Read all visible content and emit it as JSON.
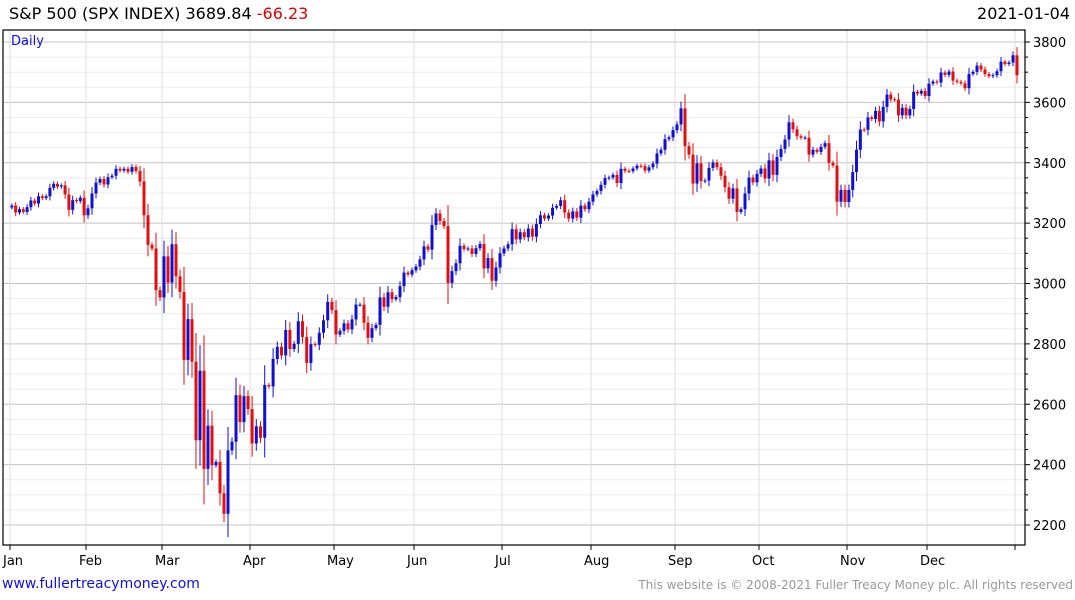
{
  "header": {
    "title": "S&P 500 (SPX INDEX) 3689.84",
    "change": "-66.23",
    "date": "2021-01-04"
  },
  "footer": {
    "link": "www.fullertreacymoney.com",
    "copyright": "This website is © 2008-2021 Fuller Treacy Money plc. All rights reserved"
  },
  "chart_data": {
    "type": "candlestick",
    "title": "S&P 500 (SPX INDEX)",
    "period_label": "Daily",
    "last": 3689.84,
    "change": -66.23,
    "ylim": [
      2170,
      3830
    ],
    "yticks": [
      2200,
      2400,
      2600,
      2800,
      3000,
      3200,
      3400,
      3600,
      3800
    ],
    "colors": {
      "up": "#1010d0",
      "down": "#e01010"
    },
    "months": [
      {
        "label": "Jan",
        "closes": [
          3258,
          3235,
          3246,
          3237,
          3253,
          3275,
          3265,
          3289,
          3283,
          3289,
          3317,
          3330,
          3321,
          3325,
          3295,
          3244,
          3276,
          3273,
          3284,
          3226
        ]
      },
      {
        "label": "Feb",
        "closes": [
          3249,
          3298,
          3334,
          3346,
          3328,
          3352,
          3357,
          3380,
          3374,
          3380,
          3370,
          3386,
          3373,
          3338,
          3226,
          3128,
          3116,
          2978,
          2954
        ]
      },
      {
        "label": "Mar",
        "closes": [
          3090,
          3003,
          3130,
          3024,
          2972,
          2747,
          2882,
          2741,
          2481,
          2711,
          2386,
          2529,
          2398,
          2409,
          2305,
          2237,
          2447,
          2476,
          2630,
          2541,
          2627,
          2584
        ]
      },
      {
        "label": "Apr",
        "closes": [
          2470,
          2527,
          2489,
          2664,
          2659,
          2750,
          2790,
          2762,
          2846,
          2783,
          2800,
          2875,
          2823,
          2737,
          2799,
          2797,
          2837,
          2878,
          2939,
          2912
        ]
      },
      {
        "label": "May",
        "closes": [
          2831,
          2843,
          2868,
          2848,
          2881,
          2930,
          2930,
          2870,
          2820,
          2852,
          2863,
          2954,
          2923,
          2971,
          2948,
          2955,
          2991,
          3036,
          3030,
          3044
        ]
      },
      {
        "label": "Jun",
        "closes": [
          3056,
          3080,
          3123,
          3112,
          3194,
          3232,
          3207,
          3190,
          3002,
          3041,
          3067,
          3125,
          3114,
          3116,
          3098,
          3117,
          3131,
          3050,
          3084,
          3009,
          3053,
          3100
        ]
      },
      {
        "label": "Jul",
        "closes": [
          3116,
          3130,
          3180,
          3146,
          3170,
          3153,
          3182,
          3155,
          3197,
          3226,
          3215,
          3225,
          3251,
          3257,
          3276,
          3235,
          3215,
          3239,
          3218,
          3258,
          3246,
          3271
        ]
      },
      {
        "label": "Aug",
        "closes": [
          3295,
          3306,
          3327,
          3349,
          3351,
          3360,
          3333,
          3380,
          3373,
          3372,
          3381,
          3390,
          3389,
          3374,
          3385,
          3397,
          3431,
          3443,
          3478,
          3484,
          3508
        ]
      },
      {
        "label": "Sep",
        "closes": [
          3527,
          3580,
          3455,
          3427,
          3331,
          3398,
          3339,
          3341,
          3383,
          3401,
          3385,
          3357,
          3319,
          3281,
          3315,
          3237,
          3246,
          3298,
          3351,
          3335,
          3363
        ]
      },
      {
        "label": "Oct",
        "closes": [
          3381,
          3348,
          3408,
          3360,
          3419,
          3446,
          3477,
          3534,
          3511,
          3488,
          3483,
          3483,
          3427,
          3443,
          3436,
          3453,
          3465,
          3400,
          3391,
          3271,
          3310,
          3270
        ]
      },
      {
        "label": "Nov",
        "closes": [
          3310,
          3369,
          3443,
          3510,
          3509,
          3550,
          3545,
          3572,
          3537,
          3585,
          3626,
          3610,
          3609,
          3557,
          3582,
          3557,
          3578,
          3635,
          3629,
          3638,
          3621
        ]
      },
      {
        "label": "Dec",
        "closes": [
          3662,
          3669,
          3666,
          3699,
          3691,
          3702,
          3672,
          3668,
          3663,
          3647,
          3694,
          3701,
          3722,
          3709,
          3694,
          3687,
          3690,
          3703,
          3735,
          3727,
          3732,
          3756
        ]
      },
      {
        "label": "",
        "closes": [
          3690
        ]
      }
    ]
  }
}
